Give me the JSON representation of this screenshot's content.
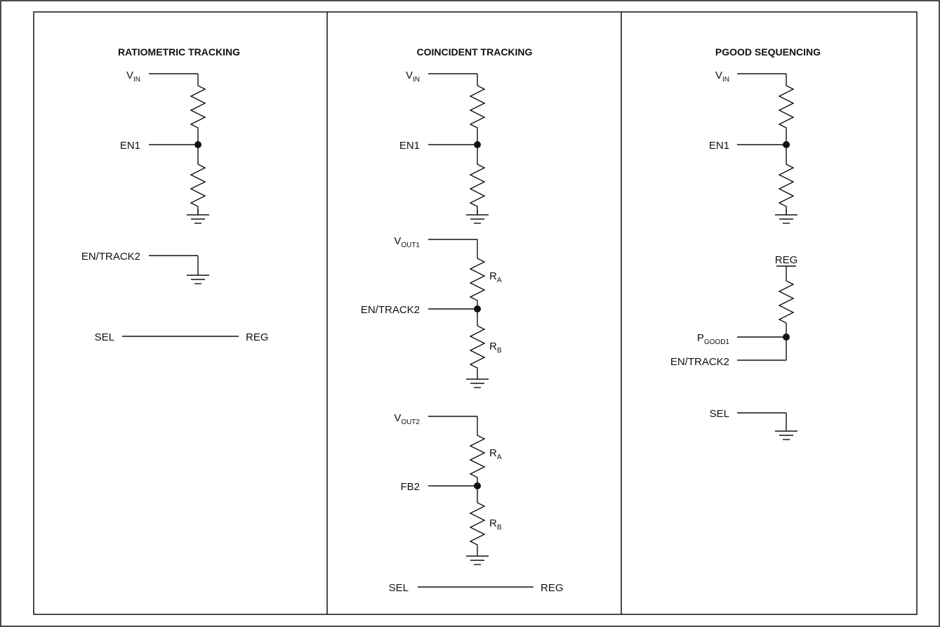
{
  "panels": [
    {
      "title": "RATIOMETRIC TRACKING",
      "vin": {
        "main": "V",
        "sub": "IN"
      },
      "en1": "EN1",
      "en_track2": "EN/TRACK2",
      "sel": "SEL",
      "reg": "REG"
    },
    {
      "title": "COINCIDENT TRACKING",
      "vin": {
        "main": "V",
        "sub": "IN"
      },
      "en1": "EN1",
      "vout1": {
        "main": "V",
        "sub": "OUT1"
      },
      "ra1": {
        "main": "R",
        "sub": "A"
      },
      "en_track2": "EN/TRACK2",
      "rb1": {
        "main": "R",
        "sub": "B"
      },
      "vout2": {
        "main": "V",
        "sub": "OUT2"
      },
      "ra2": {
        "main": "R",
        "sub": "A"
      },
      "fb2": "FB2",
      "rb2": {
        "main": "R",
        "sub": "B"
      },
      "sel": "SEL",
      "reg": "REG"
    },
    {
      "title": "PGOOD SEQUENCING",
      "vin": {
        "main": "V",
        "sub": "IN"
      },
      "en1": "EN1",
      "reg": "REG",
      "pgood1": {
        "main": "P",
        "sub": "GOOD1"
      },
      "en_track2": "EN/TRACK2",
      "sel": "SEL"
    }
  ]
}
